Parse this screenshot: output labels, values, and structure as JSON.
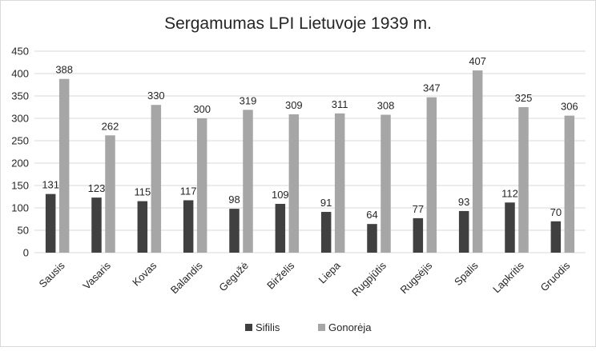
{
  "chart_data": {
    "type": "bar",
    "title": "Sergamumas LPI Lietuvoje 1939 m.",
    "xlabel": "",
    "ylabel": "",
    "categories": [
      "Sausis",
      "Vasaris",
      "Kovas",
      "Balandis",
      "Gegužė",
      "Birželis",
      "Liepa",
      "Rugpjūtis",
      "Rugsėjis",
      "Spalis",
      "Lapkritis",
      "Gruodis"
    ],
    "series": [
      {
        "name": "Sifilis",
        "color": "#404040",
        "values": [
          131,
          123,
          115,
          117,
          98,
          109,
          91,
          64,
          77,
          93,
          112,
          70
        ]
      },
      {
        "name": "Gonorėja",
        "color": "#a6a6a6",
        "values": [
          388,
          262,
          330,
          300,
          319,
          309,
          311,
          308,
          347,
          407,
          325,
          306
        ]
      }
    ],
    "ylim": [
      0,
      450
    ],
    "yticks": [
      0,
      50,
      100,
      150,
      200,
      250,
      300,
      350,
      400,
      450
    ],
    "grid": true,
    "legend_position": "bottom",
    "data_labels": true
  }
}
